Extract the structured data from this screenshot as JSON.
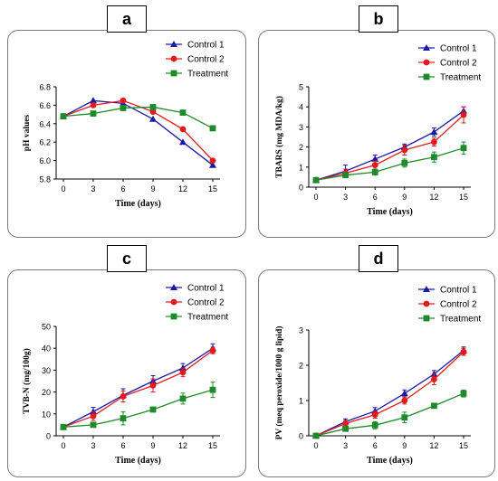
{
  "colors": {
    "control1": "#1a1aa8",
    "control2": "#e31a1c",
    "treatment": "#1f8a2a"
  },
  "chart_data": [
    {
      "panel": "a",
      "type": "line",
      "xlabel": "Time (days)",
      "ylabel": "pH values",
      "x": [
        0,
        3,
        6,
        9,
        12,
        15
      ],
      "xticks": [
        "0",
        "3",
        "6",
        "9",
        "12",
        "15"
      ],
      "ylim": [
        5.8,
        6.8
      ],
      "yticks": [
        "5.8",
        "6.0",
        "6.2",
        "6.4",
        "6.6",
        "6.8"
      ],
      "legend": "top-right",
      "series": [
        {
          "name": "Control 1",
          "marker": "triangle",
          "values": [
            6.48,
            6.65,
            6.62,
            6.45,
            6.2,
            5.95
          ],
          "errors": [
            0,
            0,
            0,
            0,
            0,
            0
          ]
        },
        {
          "name": "Control 2",
          "marker": "circle",
          "values": [
            6.48,
            6.6,
            6.65,
            6.53,
            6.34,
            6.0
          ],
          "errors": [
            0,
            0,
            0,
            0,
            0,
            0
          ]
        },
        {
          "name": "Treatment",
          "marker": "square",
          "values": [
            6.48,
            6.51,
            6.57,
            6.58,
            6.52,
            6.35
          ],
          "errors": [
            0,
            0,
            0,
            0,
            0,
            0
          ]
        }
      ]
    },
    {
      "panel": "b",
      "type": "line",
      "xlabel": "Time (days)",
      "ylabel": "TBARS (mg MDA/kg)",
      "x": [
        0,
        3,
        6,
        9,
        12,
        15
      ],
      "xticks": [
        "0",
        "3",
        "6",
        "9",
        "12",
        "15"
      ],
      "ylim": [
        0,
        5
      ],
      "yticks": [
        "0",
        "1",
        "2",
        "3",
        "4",
        "5"
      ],
      "legend": "top-right",
      "series": [
        {
          "name": "Control 1",
          "marker": "triangle",
          "values": [
            0.35,
            0.8,
            1.4,
            2.0,
            2.75,
            3.8
          ],
          "errors": [
            0.05,
            0.3,
            0.2,
            0.15,
            0.2,
            0.2
          ]
        },
        {
          "name": "Control 2",
          "marker": "circle",
          "values": [
            0.35,
            0.7,
            1.1,
            1.85,
            2.25,
            3.6
          ],
          "errors": [
            0.05,
            0.2,
            0.2,
            0.25,
            0.2,
            0.4
          ]
        },
        {
          "name": "Treatment",
          "marker": "square",
          "values": [
            0.35,
            0.6,
            0.75,
            1.2,
            1.5,
            1.95
          ],
          "errors": [
            0.05,
            0.1,
            0.15,
            0.2,
            0.25,
            0.3
          ]
        }
      ]
    },
    {
      "panel": "c",
      "type": "line",
      "xlabel": "Time (days)",
      "ylabel": "TVB-N (mg/100g)",
      "x": [
        0,
        3,
        6,
        9,
        12,
        15
      ],
      "xticks": [
        "0",
        "3",
        "6",
        "9",
        "12",
        "15"
      ],
      "ylim": [
        0,
        50
      ],
      "yticks": [
        "0",
        "10",
        "20",
        "30",
        "40",
        "50"
      ],
      "legend": "top-right",
      "series": [
        {
          "name": "Control 1",
          "marker": "triangle",
          "values": [
            4,
            11,
            18.5,
            25,
            31,
            40
          ],
          "errors": [
            0.5,
            2,
            3,
            2.5,
            2,
            2
          ]
        },
        {
          "name": "Control 2",
          "marker": "circle",
          "values": [
            4,
            9,
            18,
            23,
            29,
            39
          ],
          "errors": [
            0.5,
            2,
            2.5,
            3,
            2,
            1.5
          ]
        },
        {
          "name": "Treatment",
          "marker": "square",
          "values": [
            4,
            5,
            8,
            12,
            17,
            21
          ],
          "errors": [
            0.5,
            0.8,
            3,
            1,
            2.5,
            3.5
          ]
        }
      ]
    },
    {
      "panel": "d",
      "type": "line",
      "xlabel": "Time (days)",
      "ylabel": "PV (meq peroxide/1000 g lipid)",
      "x": [
        0,
        3,
        6,
        9,
        12,
        15
      ],
      "xticks": [
        "0",
        "3",
        "6",
        "9",
        "12",
        "15"
      ],
      "ylim": [
        0,
        3
      ],
      "yticks": [
        "0",
        "1",
        "2",
        "3"
      ],
      "legend": "top-right",
      "series": [
        {
          "name": "Control 1",
          "marker": "triangle",
          "values": [
            0,
            0.4,
            0.7,
            1.2,
            1.75,
            2.42
          ],
          "errors": [
            0.02,
            0.08,
            0.1,
            0.1,
            0.1,
            0.1
          ]
        },
        {
          "name": "Control 2",
          "marker": "circle",
          "values": [
            0,
            0.35,
            0.6,
            1.0,
            1.6,
            2.38
          ],
          "errors": [
            0.02,
            0.08,
            0.1,
            0.1,
            0.15,
            0.1
          ]
        },
        {
          "name": "Treatment",
          "marker": "square",
          "values": [
            0,
            0.2,
            0.3,
            0.52,
            0.85,
            1.2
          ],
          "errors": [
            0.02,
            0.05,
            0.1,
            0.15,
            0.05,
            0.1
          ]
        }
      ]
    }
  ]
}
